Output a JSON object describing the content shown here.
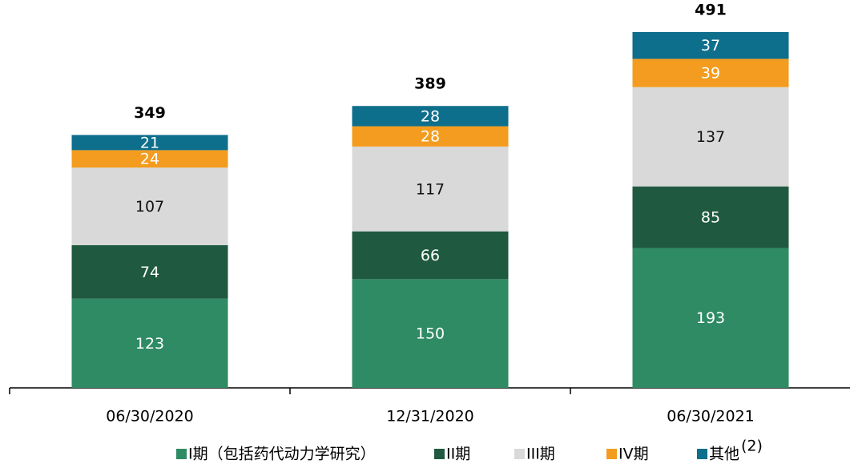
{
  "chart_data": {
    "type": "stacked_bar",
    "categories": [
      "06/30/2020",
      "12/31/2020",
      "06/30/2021"
    ],
    "totals": [
      349,
      389,
      491
    ],
    "series": [
      {
        "name": "I期（包括药代动力学研究）",
        "color": "#2e8b63",
        "label_color": "#ffffff",
        "values": [
          123,
          150,
          193
        ]
      },
      {
        "name": "II期",
        "color": "#1f5a40",
        "label_color": "#ffffff",
        "values": [
          74,
          66,
          85
        ]
      },
      {
        "name": "III期",
        "color": "#d9d9d9",
        "label_color": "#111111",
        "values": [
          107,
          117,
          137
        ]
      },
      {
        "name": "IV期",
        "color": "#f39c1f",
        "label_color": "#ffffff",
        "values": [
          24,
          28,
          39
        ]
      },
      {
        "name": "其他",
        "color": "#0e6f8c",
        "label_color": "#ffffff",
        "values": [
          21,
          28,
          37
        ]
      }
    ],
    "legend_superscript": "(2)"
  }
}
